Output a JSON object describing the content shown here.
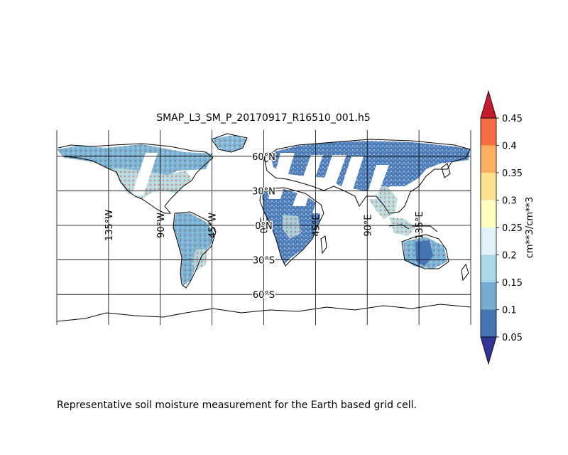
{
  "figure": {
    "title": "SMAP_L3_SM_P_20170917_R16510_001.h5",
    "caption": "Representative soil moisture measurement for the Earth based grid cell."
  },
  "map": {
    "projection": "cylindrical",
    "lon_range": [
      -180,
      180
    ],
    "lat_range": [
      -90,
      90
    ],
    "meridians": [
      {
        "lon": -135,
        "label": "135°W"
      },
      {
        "lon": -90,
        "label": "90°W"
      },
      {
        "lon": -45,
        "label": "45°W"
      },
      {
        "lon": 0,
        "label": "0°E"
      },
      {
        "lon": 45,
        "label": "45°E"
      },
      {
        "lon": 90,
        "label": "90°E"
      },
      {
        "lon": 135,
        "label": "135°E"
      }
    ],
    "parallels": [
      {
        "lat": 60,
        "label": "60°N"
      },
      {
        "lat": 30,
        "label": "30°N"
      },
      {
        "lat": 0,
        "label": "0°N"
      },
      {
        "lat": -30,
        "label": "30°S"
      },
      {
        "lat": -60,
        "label": "60°S"
      }
    ]
  },
  "colorbar": {
    "label": "cm**3/cm**3",
    "ticks": [
      "0.05",
      "0.1",
      "0.15",
      "0.2",
      "0.25",
      "0.3",
      "0.35",
      "0.4",
      "0.45"
    ],
    "bins": [
      {
        "from": 0.05,
        "to": 0.1,
        "color": "#4575b4"
      },
      {
        "from": 0.1,
        "to": 0.15,
        "color": "#74add1"
      },
      {
        "from": 0.15,
        "to": 0.2,
        "color": "#abd9e9"
      },
      {
        "from": 0.2,
        "to": 0.25,
        "color": "#e0f3f8"
      },
      {
        "from": 0.25,
        "to": 0.3,
        "color": "#ffffbf"
      },
      {
        "from": 0.3,
        "to": 0.35,
        "color": "#fee090"
      },
      {
        "from": 0.35,
        "to": 0.4,
        "color": "#fdae61"
      },
      {
        "from": 0.4,
        "to": 0.45,
        "color": "#f46d43"
      }
    ],
    "under_color": "#313695",
    "over_color": "#c51b2f"
  }
}
